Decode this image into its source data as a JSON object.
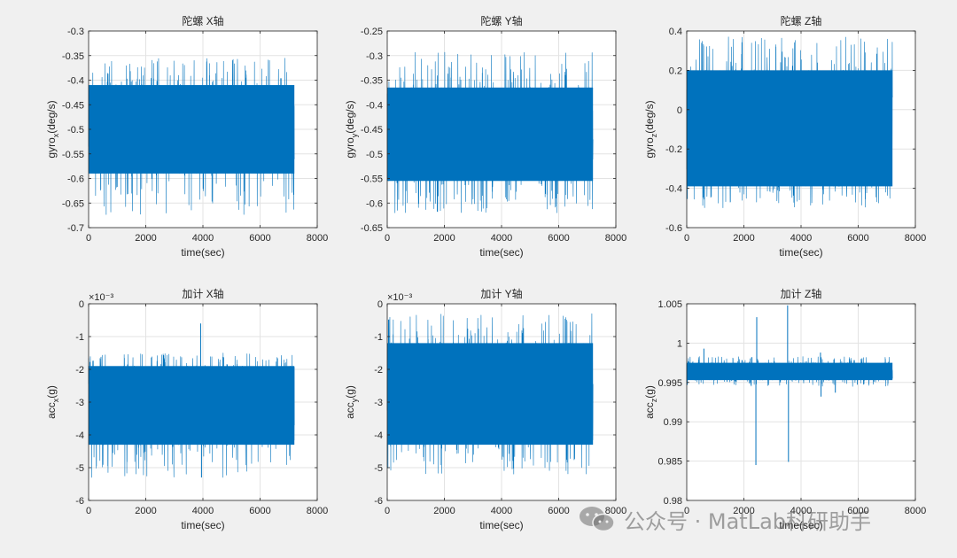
{
  "chart_data": [
    {
      "type": "line",
      "title": "陀螺 X轴",
      "ylabel": "gyro",
      "ylabel_sub": "x",
      "ylabel_suffix": "(deg/s)",
      "xlabel": "time(sec)",
      "xlim": [
        0,
        8000
      ],
      "ylim": [
        -0.7,
        -0.3
      ],
      "xticks": [
        0,
        2000,
        4000,
        6000,
        8000
      ],
      "yticks": [
        -0.7,
        -0.65,
        -0.6,
        -0.55,
        -0.5,
        -0.45,
        -0.4,
        -0.35,
        -0.3
      ],
      "ytick_labels": [
        "-0.7",
        "-0.65",
        "-0.6",
        "-0.55",
        "-0.5",
        "-0.45",
        "-0.4",
        "-0.35",
        "-0.3"
      ],
      "exponent": "",
      "series": [
        {
          "name": "gyro_x",
          "x_range": [
            0,
            7200
          ],
          "band": [
            -0.59,
            -0.41
          ],
          "extremes": [
            -0.675,
            -0.355
          ],
          "color": "#0072bd"
        }
      ]
    },
    {
      "type": "line",
      "title": "陀螺 Y轴",
      "ylabel": "gyro",
      "ylabel_sub": "y",
      "ylabel_suffix": "(deg/s)",
      "xlabel": "time(sec)",
      "xlim": [
        0,
        8000
      ],
      "ylim": [
        -0.65,
        -0.25
      ],
      "xticks": [
        0,
        2000,
        4000,
        6000,
        8000
      ],
      "yticks": [
        -0.65,
        -0.6,
        -0.55,
        -0.5,
        -0.45,
        -0.4,
        -0.35,
        -0.3,
        -0.25
      ],
      "ytick_labels": [
        "-0.65",
        "-0.6",
        "-0.55",
        "-0.5",
        "-0.45",
        "-0.4",
        "-0.35",
        "-0.3",
        "-0.25"
      ],
      "exponent": "",
      "series": [
        {
          "name": "gyro_y",
          "x_range": [
            0,
            7200
          ],
          "band": [
            -0.555,
            -0.365
          ],
          "extremes": [
            -0.62,
            -0.29
          ],
          "color": "#0072bd"
        }
      ]
    },
    {
      "type": "line",
      "title": "陀螺 Z轴",
      "ylabel": "gyro",
      "ylabel_sub": "z",
      "ylabel_suffix": "(deg/s)",
      "xlabel": "time(sec)",
      "xlim": [
        0,
        8000
      ],
      "ylim": [
        -0.6,
        0.4
      ],
      "xticks": [
        0,
        2000,
        4000,
        6000,
        8000
      ],
      "yticks": [
        -0.6,
        -0.4,
        -0.2,
        0,
        0.2,
        0.4
      ],
      "ytick_labels": [
        "-0.6",
        "-0.4",
        "-0.2",
        "0",
        "0.2",
        "0.4"
      ],
      "exponent": "",
      "series": [
        {
          "name": "gyro_z",
          "x_range": [
            0,
            7200
          ],
          "band": [
            -0.39,
            0.2
          ],
          "extremes": [
            -0.5,
            0.37
          ],
          "color": "#0072bd"
        }
      ]
    },
    {
      "type": "line",
      "title": "加计 X轴",
      "ylabel": "acc",
      "ylabel_sub": "x",
      "ylabel_suffix": "(g)",
      "xlabel": "time(sec)",
      "xlim": [
        0,
        8000
      ],
      "ylim": [
        -0.006,
        0
      ],
      "xticks": [
        0,
        2000,
        4000,
        6000,
        8000
      ],
      "yticks": [
        -0.006,
        -0.005,
        -0.004,
        -0.003,
        -0.002,
        -0.001,
        0
      ],
      "ytick_labels": [
        "-6",
        "-5",
        "-4",
        "-3",
        "-2",
        "-1",
        "0"
      ],
      "exponent": "×10⁻³",
      "series": [
        {
          "name": "acc_x",
          "x_range": [
            0,
            7200
          ],
          "band": [
            -0.0043,
            -0.0019
          ],
          "extremes": [
            -0.0053,
            -0.0015
          ],
          "spikes": [
            [
              3920,
              -0.0006
            ],
            [
              3950,
              -0.0053
            ]
          ],
          "color": "#0072bd"
        }
      ]
    },
    {
      "type": "line",
      "title": "加计 Y轴",
      "ylabel": "acc",
      "ylabel_sub": "y",
      "ylabel_suffix": "(g)",
      "xlabel": "time(sec)",
      "xlim": [
        0,
        8000
      ],
      "ylim": [
        -0.006,
        0
      ],
      "xticks": [
        0,
        2000,
        4000,
        6000,
        8000
      ],
      "yticks": [
        -0.006,
        -0.005,
        -0.004,
        -0.003,
        -0.002,
        -0.001,
        0
      ],
      "ytick_labels": [
        "-6",
        "-5",
        "-4",
        "-3",
        "-2",
        "-1",
        "0"
      ],
      "exponent": "×10⁻³",
      "series": [
        {
          "name": "acc_y",
          "x_range": [
            0,
            7200
          ],
          "band": [
            -0.0043,
            -0.0012
          ],
          "extremes": [
            -0.0052,
            -0.0003
          ],
          "color": "#0072bd"
        }
      ]
    },
    {
      "type": "line",
      "title": "加计 Z轴",
      "ylabel": "acc",
      "ylabel_sub": "z",
      "ylabel_suffix": "(g)",
      "xlabel": "time(sec)",
      "xlim": [
        0,
        8000
      ],
      "ylim": [
        0.98,
        1.005
      ],
      "xticks": [
        0,
        2000,
        4000,
        6000,
        8000
      ],
      "yticks": [
        0.98,
        0.985,
        0.99,
        0.995,
        1,
        1.005
      ],
      "ytick_labels": [
        "0.98",
        "0.985",
        "0.99",
        "0.995",
        "1",
        "1.005"
      ],
      "exponent": "",
      "series": [
        {
          "name": "acc_z",
          "x_range": [
            0,
            7200
          ],
          "band": [
            0.9953,
            0.9975
          ],
          "extremes": [
            0.9945,
            0.9983
          ],
          "spikes": [
            [
              2420,
              0.9845
            ],
            [
              2450,
              1.0033
            ],
            [
              3530,
              1.0048
            ],
            [
              3560,
              0.9849
            ],
            [
              4680,
              0.9988
            ],
            [
              4700,
              0.9932
            ],
            [
              600,
              0.9993
            ],
            [
              5200,
              0.9937
            ]
          ],
          "color": "#0072bd"
        }
      ]
    }
  ],
  "watermark": {
    "text": "公众号 · MatLab科研助手",
    "icon": "wechat-icon"
  }
}
